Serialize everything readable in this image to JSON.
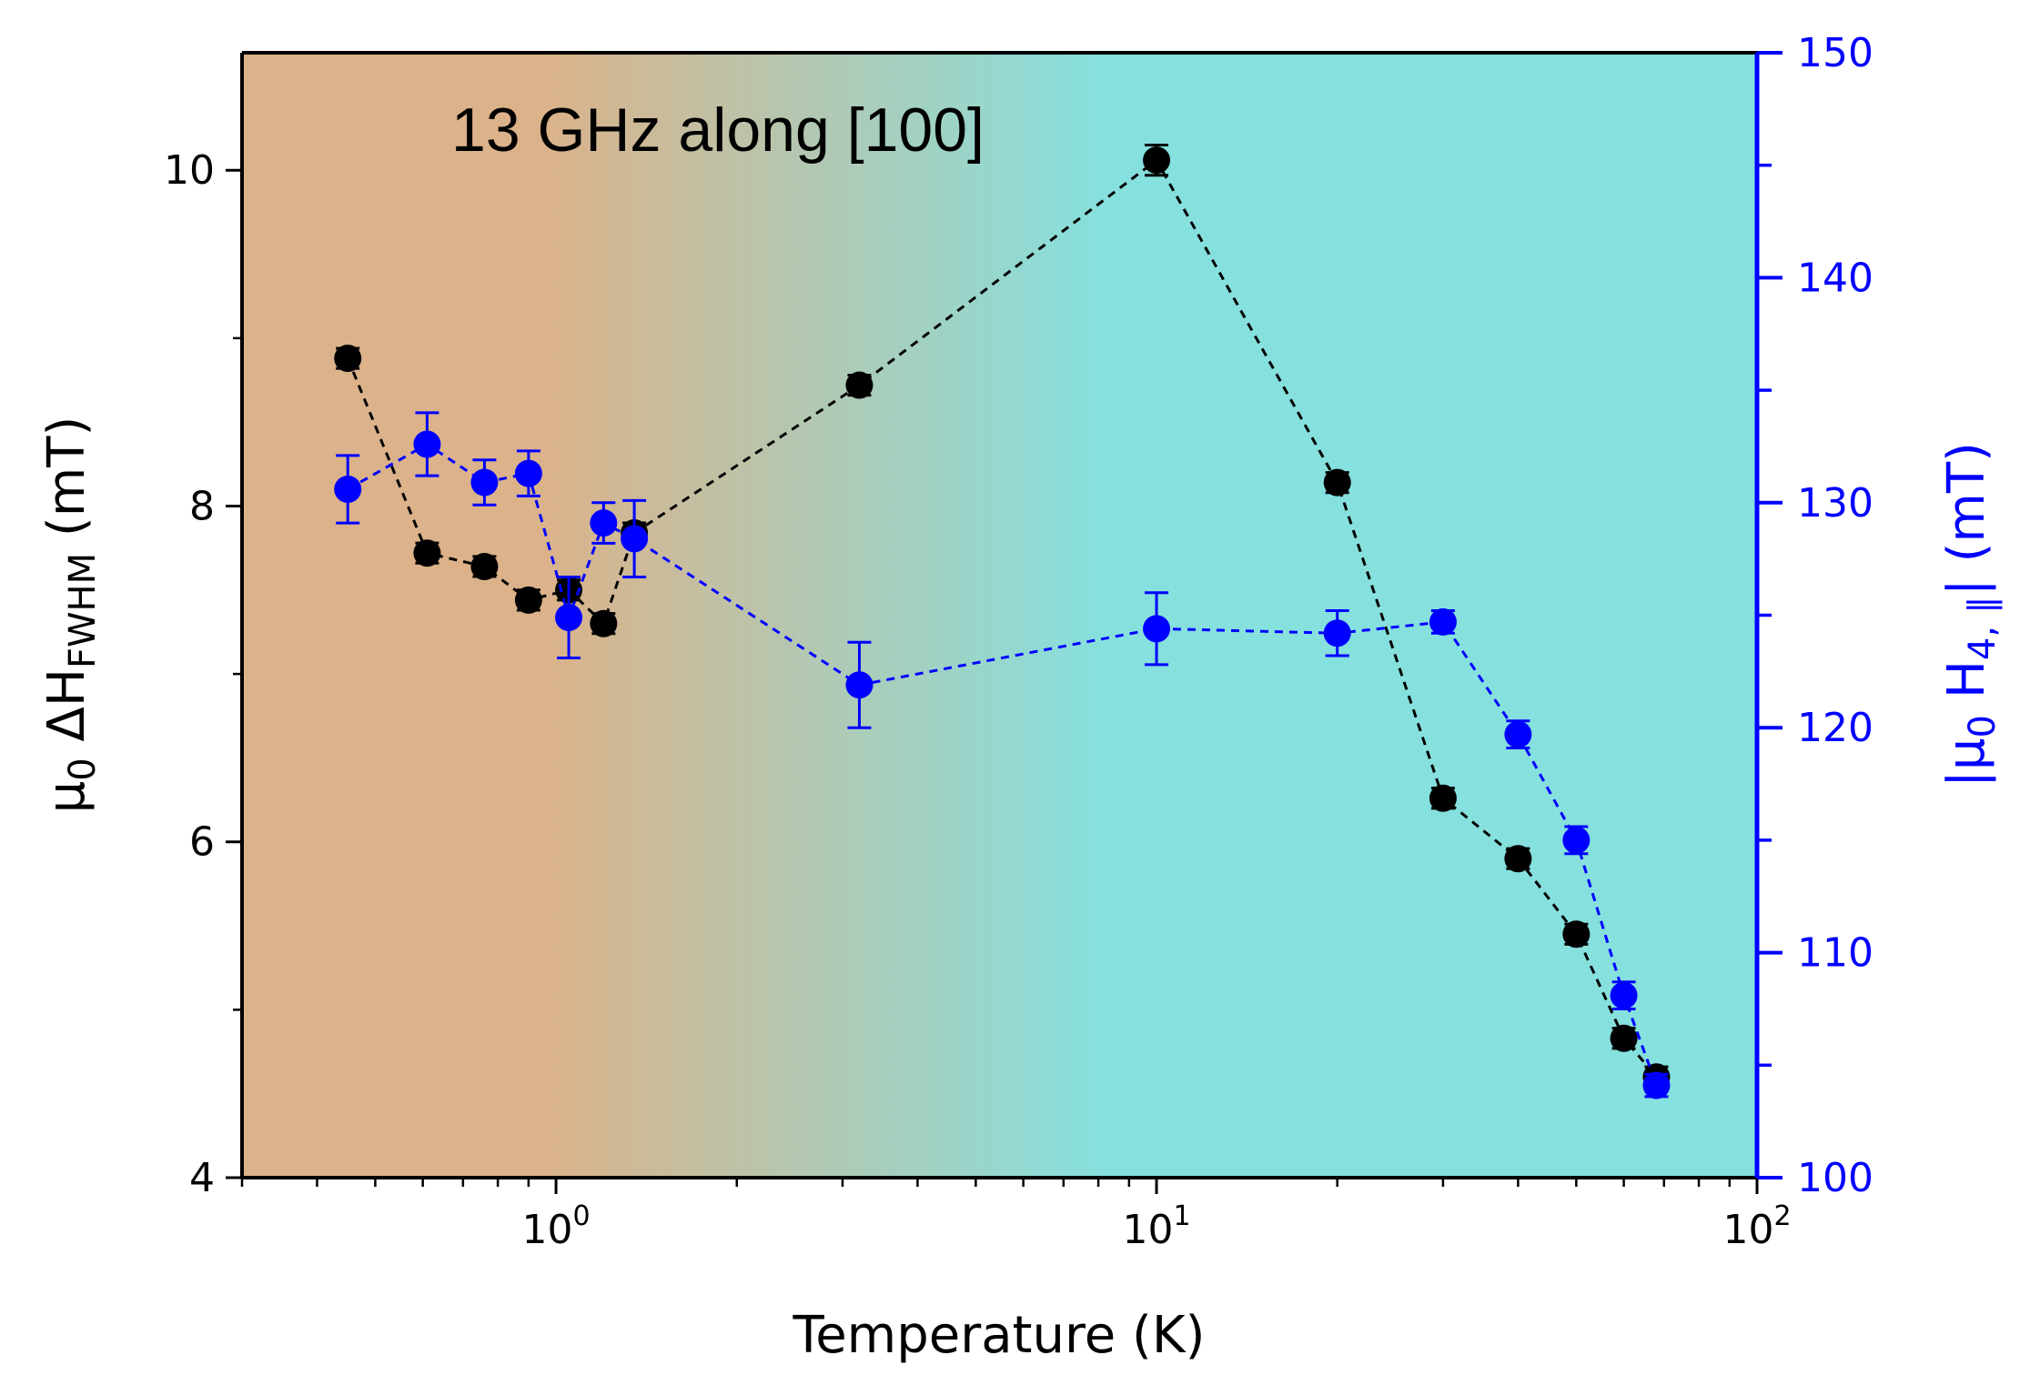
{
  "chart_data": {
    "type": "scatter",
    "annotation": "13 GHz along [100]",
    "xlabel": "Temperature (K)",
    "ylabel": {
      "prefix": "μ",
      "prefix_sub": "0",
      "main": " ΔH",
      "sub": "FWHM",
      "suffix": " (mT)"
    },
    "y2label": {
      "prefix": "|μ",
      "prefix_sub": "0",
      "main": " H",
      "sub": "4, ∥",
      "suffix": "| (mT)"
    },
    "x_scale": "log",
    "xlim": [
      0.3,
      100
    ],
    "x_ticks": [
      {
        "value": 1,
        "base": "10",
        "exp": "0"
      },
      {
        "value": 10,
        "base": "10",
        "exp": "1"
      },
      {
        "value": 100,
        "base": "10",
        "exp": "2"
      }
    ],
    "ylim": [
      4,
      10.7
    ],
    "y_ticks": [
      4,
      6,
      8,
      10
    ],
    "y_minor_ticks": [
      5,
      7,
      9
    ],
    "y2lim": [
      100,
      150
    ],
    "y2_ticks": [
      100,
      110,
      120,
      130,
      140,
      150
    ],
    "y2_minor_ticks": [
      105,
      115,
      125,
      135,
      145
    ],
    "background_gradient": {
      "left": "#dbb28a",
      "right": "#86e0de"
    },
    "grid": false,
    "series": [
      {
        "axis": "left",
        "color": "#000000",
        "x": [
          0.45,
          0.61,
          0.76,
          0.9,
          1.05,
          1.2,
          1.35,
          3.2,
          10,
          20,
          30,
          40,
          50,
          60,
          68
        ],
        "y": [
          8.88,
          7.72,
          7.64,
          7.44,
          7.5,
          7.3,
          7.84,
          8.72,
          10.06,
          8.14,
          6.26,
          5.9,
          5.45,
          4.83,
          4.6
        ],
        "err": [
          0.06,
          0.06,
          0.06,
          0.06,
          0.06,
          0.06,
          0.06,
          0.06,
          0.09,
          0.06,
          0.06,
          0.06,
          0.06,
          0.06,
          0.06
        ]
      },
      {
        "axis": "right",
        "color": "#0000ff",
        "x": [
          0.45,
          0.61,
          0.76,
          0.9,
          1.05,
          1.2,
          1.35,
          3.2,
          10,
          20,
          30,
          40,
          50,
          60,
          68
        ],
        "y": [
          130.6,
          132.6,
          130.9,
          131.3,
          124.9,
          129.1,
          128.4,
          121.9,
          124.4,
          124.2,
          124.7,
          119.7,
          115.0,
          108.1,
          104.1
        ],
        "err": [
          1.5,
          1.4,
          1.0,
          1.0,
          1.8,
          0.9,
          1.7,
          1.9,
          1.6,
          1.0,
          0.5,
          0.6,
          0.6,
          0.6,
          0.5
        ]
      }
    ]
  }
}
